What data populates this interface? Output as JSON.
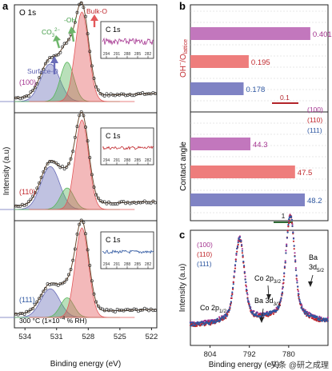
{
  "panel_labels": {
    "a": "a",
    "b": "b",
    "c": "c"
  },
  "watermark": "头条 @研之成理",
  "chart_data": [
    {
      "panel": "a",
      "type": "line",
      "title": "O 1s",
      "xlabel": "Binding energy (eV)",
      "ylabel": "Intensity (a.u)",
      "xticks": [
        "534",
        "531",
        "528",
        "525",
        "522"
      ],
      "xlim": [
        535,
        521.5
      ],
      "axis_reversed": true,
      "annotations": {
        "surface": "Surface-O",
        "co3": "CO",
        "co3_sup": "2−",
        "co3_sub": "3",
        "oh": "-OH",
        "bulk": "Bulk-O",
        "condition": "300 °C (1×10",
        "condition_sup": "−4",
        "condition_tail": " % RH)"
      },
      "subpanels": [
        {
          "label": "(100)",
          "label_color": "#a4338f",
          "peaks": [
            {
              "center": 531.6,
              "fwhm": 2.1,
              "height": 0.42
            },
            {
              "center": 530.0,
              "fwhm": 1.5,
              "height": 0.44
            },
            {
              "center": 528.6,
              "fwhm": 1.5,
              "height": 1.0
            }
          ]
        },
        {
          "label": "(110)",
          "label_color": "#c0262b",
          "peaks": [
            {
              "center": 531.6,
              "fwhm": 2.1,
              "height": 0.48
            },
            {
              "center": 530.0,
              "fwhm": 1.5,
              "height": 0.24
            },
            {
              "center": 528.6,
              "fwhm": 1.5,
              "height": 1.0
            }
          ]
        },
        {
          "label": "(111)",
          "label_color": "#2d56a0",
          "peaks": [
            {
              "center": 531.6,
              "fwhm": 2.1,
              "height": 0.32
            },
            {
              "center": 530.0,
              "fwhm": 1.5,
              "height": 0.22
            },
            {
              "center": 528.6,
              "fwhm": 1.5,
              "height": 1.0
            }
          ]
        }
      ],
      "inset": {
        "title": "C 1s",
        "xticks": [
          "294",
          "291",
          "288",
          "285",
          "282"
        ],
        "colors": [
          "#a4338f",
          "#c0262b",
          "#2d56a0"
        ]
      },
      "colors": {
        "surface": "#6a6db8",
        "co3": "#58b55a",
        "bulk": "#e2585a",
        "data": "#333333",
        "fit": "#6b4a2e"
      }
    },
    {
      "panel": "b",
      "type": "bar",
      "orientation": "horizontal",
      "groups": [
        {
          "ylabel": "OH",
          "ylabel_sup": "−",
          "ylabel_mid": "/O",
          "ylabel_sub": "lattice",
          "ylabel_color": "#c0262b",
          "scale_bar": "0.1",
          "scale_color": "#b2242a",
          "xlim": [
            0,
            0.42
          ],
          "bars": [
            {
              "name": "(100)",
              "value": 0.401,
              "label": "0.401",
              "color": "#c277bd"
            },
            {
              "name": "(110)",
              "value": 0.195,
              "label": "0.195",
              "color": "#ee7d7c"
            },
            {
              "name": "(111)",
              "value": 0.178,
              "label": "0.178",
              "color": "#7f83c4"
            }
          ]
        },
        {
          "ylabel": "Contact angle",
          "ylabel_color": "#1a1a1a",
          "scale_bar": "1",
          "scale_color": "#2e6b35",
          "xlim": [
            40,
            49
          ],
          "bars": [
            {
              "name": "(100)",
              "value": 44.3,
              "label": "44.3",
              "color": "#c277bd"
            },
            {
              "name": "(110)",
              "value": 47.5,
              "label": "47.5",
              "color": "#ee7d7c"
            },
            {
              "name": "(111)",
              "value": 48.2,
              "label": "48.2",
              "color": "#7f83c4"
            }
          ]
        }
      ],
      "legend": [
        {
          "label": "(100)",
          "color": "#a4338f"
        },
        {
          "label": "(110)",
          "color": "#c0262b"
        },
        {
          "label": "(111)",
          "color": "#2d56a0"
        }
      ],
      "label_colors": {
        "(100)": "#a4338f",
        "(110)": "#c0262b",
        "(111)": "#2d56a0"
      }
    },
    {
      "panel": "c",
      "type": "line",
      "xlabel": "Binding energy (eV)",
      "ylabel": "Intensity (a.u)",
      "xticks": [
        "804",
        "792",
        "780"
      ],
      "xlim": [
        810,
        768
      ],
      "axis_reversed": true,
      "legend": [
        {
          "label": "(100)",
          "color": "#a4338f"
        },
        {
          "label": "(110)",
          "color": "#c0262b"
        },
        {
          "label": "(111)",
          "color": "#2d56a0"
        }
      ],
      "annotations": {
        "co2p12": "Co 2p",
        "co2p12_sub": "1/2",
        "co2p32": "Co 2p",
        "co2p32_sub": "3/2",
        "ba3d32": "Ba 3d",
        "ba3d32_sub": "3/2",
        "ba3d52_top": "Ba",
        "ba3d52": "3d",
        "ba3d52_sub": "5/2"
      },
      "peaks": [
        {
          "center": 795.0,
          "width": 1.4,
          "height": 0.82
        },
        {
          "center": 779.5,
          "width": 1.3,
          "height": 1.0
        },
        {
          "center": 794.6,
          "width": 4.5,
          "height": 0.12
        },
        {
          "center": 780.0,
          "width": 4.5,
          "height": 0.18
        }
      ]
    }
  ]
}
